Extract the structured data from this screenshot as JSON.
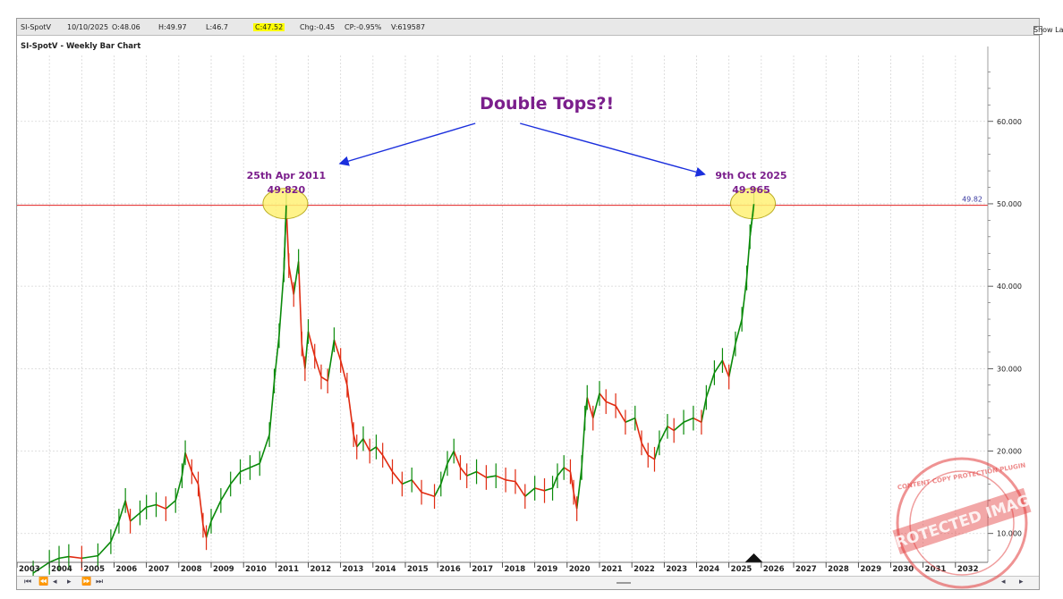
{
  "topbar": {
    "symbol": "SI-SpotV",
    "date": "10/10/2025",
    "open": "O:48.06",
    "high": "H:49.97",
    "low": "L:46.7",
    "close": "C:47.52",
    "change": "Chg:-0.45",
    "change_pct": "CP:-0.95%",
    "volume": "V:619587",
    "show_last_label": "Show Last"
  },
  "chart_title": "SI-SpotV - Weekly Bar Chart",
  "annotations": {
    "headline": "Double Tops?!",
    "peak1_date": "25th Apr 2011",
    "peak1_value": "49.820",
    "peak2_date": "9th Oct 2025",
    "peak2_value": "49.965",
    "hline_label": "49.82"
  },
  "watermark": {
    "main": "PROTECTED IMAGE",
    "ring": "CONTENT COPY PROTECTION PLUGIN"
  },
  "colors": {
    "up": "#0a8a0a",
    "down": "#e02a10",
    "annotation": "#7b1f8c",
    "arrow": "#1b2fdd",
    "hline": "#e22222",
    "highlight": "#fff176",
    "grid": "#d6d6d6",
    "stamp": "#e23b3b"
  },
  "chart_data": {
    "type": "line",
    "title": "SI-SpotV - Weekly Bar Chart",
    "xlabel": "",
    "ylabel": "",
    "x_ticks": [
      "2003",
      "2004",
      "2005",
      "2006",
      "2007",
      "2008",
      "2009",
      "2010",
      "2011",
      "2012",
      "2013",
      "2014",
      "2015",
      "2016",
      "2017",
      "2018",
      "2019",
      "2020",
      "2021",
      "2022",
      "2023",
      "2024",
      "2025",
      "2026",
      "2027",
      "2028",
      "2029",
      "2030",
      "2031",
      "2032"
    ],
    "y_ticks": [
      "10.000",
      "20.000",
      "30.000",
      "40.000",
      "50.000",
      "60.000"
    ],
    "xlim": [
      2003.0,
      2033.0
    ],
    "ylim": [
      6.5,
      68
    ],
    "grid": true,
    "horizontal_line": 49.82,
    "series": [
      {
        "x": [
          2003.5,
          2004.0,
          2004.3,
          2004.6,
          2005.0,
          2005.5,
          2005.9,
          2006.15,
          2006.35,
          2006.5,
          2006.8,
          2007.0,
          2007.3,
          2007.6,
          2007.9,
          2008.1,
          2008.2,
          2008.4,
          2008.6,
          2008.75,
          2008.85,
          2009.0,
          2009.3,
          2009.6,
          2009.9,
          2010.2,
          2010.5,
          2010.8,
          2010.95,
          2011.1,
          2011.25,
          2011.32,
          2011.4,
          2011.55,
          2011.7,
          2011.8,
          2011.9,
          2012.0,
          2012.2,
          2012.4,
          2012.6,
          2012.8,
          2013.0,
          2013.2,
          2013.4,
          2013.5,
          2013.7,
          2013.9,
          2014.1,
          2014.3,
          2014.6,
          2014.9,
          2015.2,
          2015.5,
          2015.9,
          2016.1,
          2016.3,
          2016.5,
          2016.7,
          2016.9,
          2017.2,
          2017.5,
          2017.8,
          2018.1,
          2018.4,
          2018.7,
          2019.0,
          2019.3,
          2019.55,
          2019.7,
          2019.9,
          2020.1,
          2020.2,
          2020.3,
          2020.45,
          2020.55,
          2020.62,
          2020.8,
          2021.0,
          2021.2,
          2021.5,
          2021.8,
          2022.1,
          2022.3,
          2022.5,
          2022.7,
          2022.85,
          2023.1,
          2023.3,
          2023.6,
          2023.9,
          2024.15,
          2024.3,
          2024.55,
          2024.8,
          2025.0,
          2025.2,
          2025.4,
          2025.55,
          2025.65,
          2025.77
        ],
        "y": [
          5.2,
          6.5,
          7.0,
          7.2,
          7.0,
          7.3,
          9.0,
          11.5,
          14.0,
          11.5,
          12.5,
          13.2,
          13.5,
          13.0,
          14.0,
          17.0,
          19.8,
          17.5,
          16.0,
          11.0,
          9.5,
          11.5,
          14.0,
          16.0,
          17.5,
          18.0,
          18.5,
          22.0,
          28.5,
          34.0,
          42.0,
          49.82,
          42.5,
          39.0,
          43.0,
          33.0,
          30.0,
          34.5,
          31.5,
          29.0,
          28.5,
          33.5,
          31.0,
          28.0,
          22.0,
          20.5,
          21.5,
          20.0,
          20.5,
          19.5,
          17.5,
          16.0,
          16.5,
          15.0,
          14.5,
          16.0,
          18.5,
          20.0,
          18.0,
          17.0,
          17.5,
          16.8,
          17.0,
          16.5,
          16.3,
          14.5,
          15.5,
          15.2,
          15.5,
          17.0,
          18.0,
          17.5,
          15.0,
          13.0,
          18.0,
          24.0,
          26.5,
          24.0,
          27.0,
          26.0,
          25.5,
          23.5,
          24.0,
          21.0,
          19.5,
          19.0,
          21.0,
          23.0,
          22.5,
          23.5,
          24.0,
          23.5,
          26.5,
          29.5,
          31.0,
          29.0,
          33.0,
          36.0,
          41.0,
          46.0,
          49.965
        ]
      }
    ]
  }
}
